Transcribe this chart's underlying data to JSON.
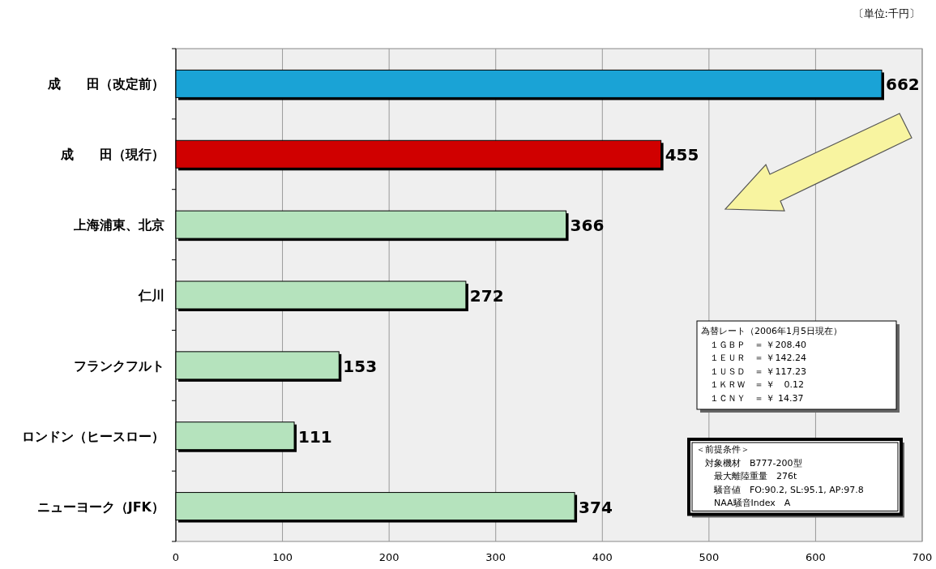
{
  "chart_data": {
    "type": "bar",
    "orientation": "horizontal",
    "categories": [
      "成　　田（改定前）",
      "成　　田（現行）",
      "上海浦東、北京",
      "仁川",
      "フランクフルト",
      "ロンドン（ヒースロー）",
      "ニューヨーク（JFK）"
    ],
    "values": [
      662,
      455,
      366,
      272,
      153,
      111,
      374
    ],
    "colors": [
      "#1aa3d6",
      "#d00000",
      "#b5e3bd",
      "#b5e3bd",
      "#b5e3bd",
      "#b5e3bd",
      "#b5e3bd"
    ],
    "xlim": [
      0,
      700
    ],
    "xticks": [
      0,
      100,
      200,
      300,
      400,
      500,
      600,
      700
    ],
    "grid": "x",
    "data_labels": true,
    "annotations": [
      "〔単位:千円〕",
      "為替レート（2006年1月5日現在）",
      "　１ＧＢＰ　＝ ￥208.40",
      "　１ＥＵＲ　＝ ￥142.24",
      "　１ＵＳＤ　＝ ￥117.23",
      "　１ＫＲＷ　＝ ￥　0.12",
      "　１ＣＮＹ　＝ ￥ 14.37",
      "＜前提条件＞",
      "　対象機材　B777-200型",
      "　　最大離陸重量　276t",
      "　　騒音値　FO:90.2, SL:95.1, AP:97.8",
      "　　NAA騒音Index　A"
    ]
  }
}
